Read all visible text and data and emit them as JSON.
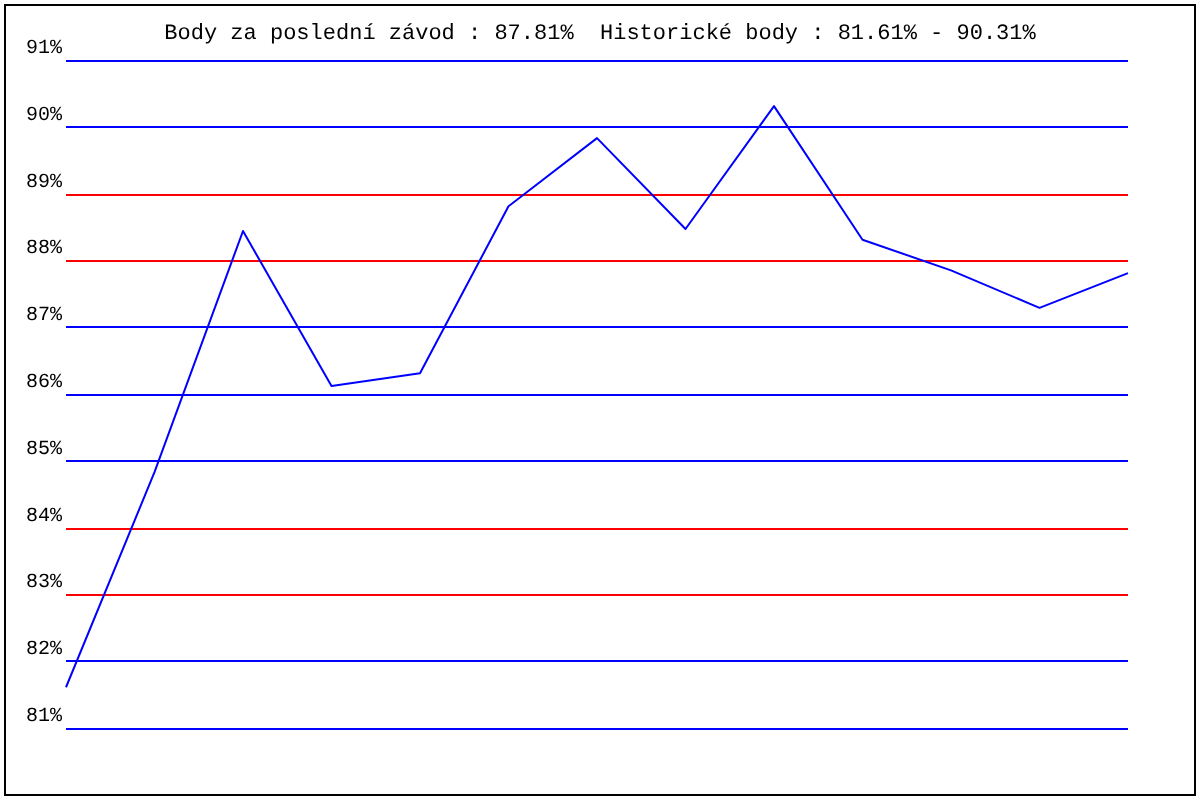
{
  "chart_data": {
    "type": "line",
    "title": "Body za poslední závod : 87.81%  Historické body : 81.61% - 90.31%",
    "categories": [
      null,
      null,
      null,
      null,
      null,
      null,
      null,
      null,
      null,
      null,
      null,
      null,
      null
    ],
    "series": [
      {
        "color": "#0000ff",
        "values": [
          81.61,
          84.83,
          88.44,
          86.12,
          86.31,
          88.81,
          89.83,
          88.47,
          90.31,
          88.31,
          87.85,
          87.29,
          87.81
        ]
      }
    ],
    "ylim": [
      81,
      91
    ],
    "yticks": [
      {
        "value": 81,
        "label": "81%"
      },
      {
        "value": 82,
        "label": "82%"
      },
      {
        "value": 83,
        "label": "83%"
      },
      {
        "value": 84,
        "label": "84%"
      },
      {
        "value": 85,
        "label": "85%"
      },
      {
        "value": 86,
        "label": "86%"
      },
      {
        "value": 87,
        "label": "87%"
      },
      {
        "value": 88,
        "label": "88%"
      },
      {
        "value": 89,
        "label": "89%"
      },
      {
        "value": 90,
        "label": "90%"
      },
      {
        "value": 91,
        "label": "91%"
      }
    ],
    "grid": "y",
    "tick_labels": "y",
    "marker": "none",
    "line_style": "solid"
  }
}
